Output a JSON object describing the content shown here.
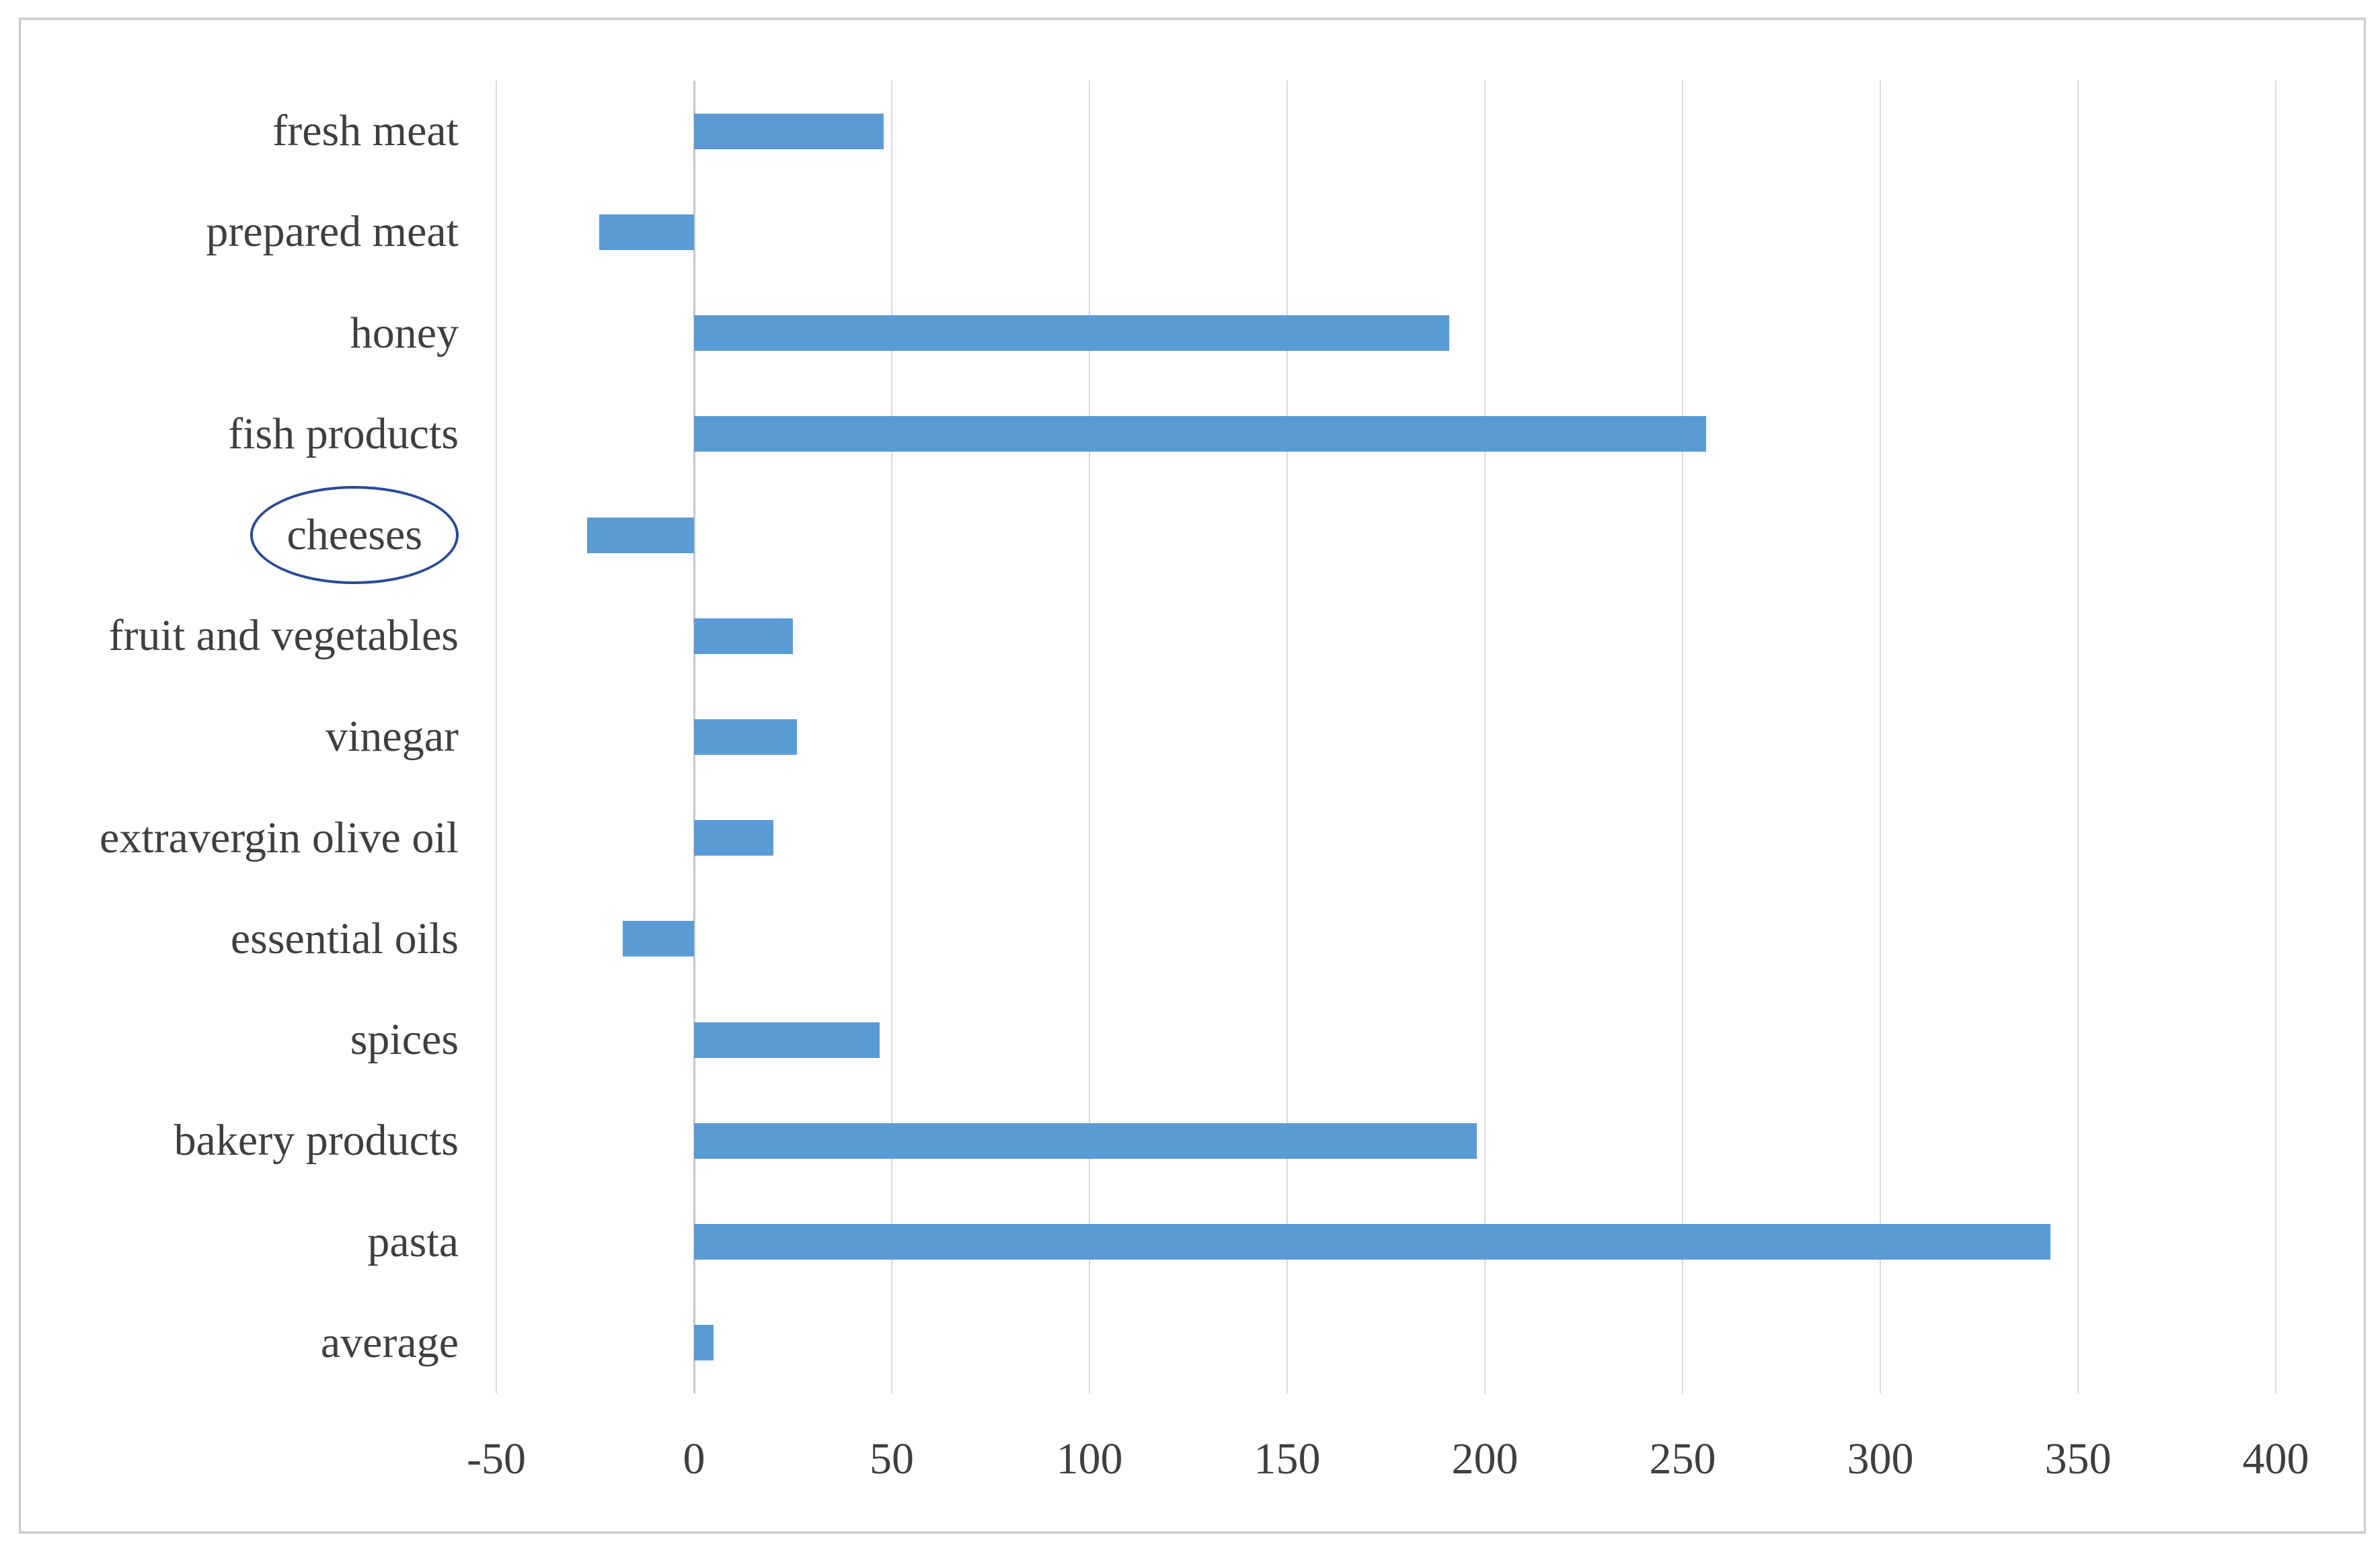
{
  "figure": {
    "background_color": "#ffffff",
    "frame_border_color": "#c9c9c9"
  },
  "chart_data": {
    "type": "bar",
    "orientation": "horizontal",
    "title": "",
    "xlabel": "",
    "ylabel": "",
    "categories": [
      "fresh meat",
      "prepared meat",
      "honey",
      "fish products",
      "cheeses",
      "fruit and vegetables",
      "vinegar",
      "extravergin olive oil",
      "essential oils",
      "spices",
      "bakery products",
      "pasta",
      "average"
    ],
    "values": [
      48,
      -24,
      191,
      256,
      -27,
      25,
      26,
      20,
      -18,
      47,
      198,
      343,
      5
    ],
    "xlim": [
      -50,
      400
    ],
    "x_ticks": [
      -50,
      0,
      50,
      100,
      150,
      200,
      250,
      300,
      350,
      400
    ],
    "x_tick_labels": [
      "-50",
      "0",
      "50",
      "100",
      "150",
      "200",
      "250",
      "300",
      "350",
      "400"
    ],
    "grid": "vertical-gridlines-on",
    "legend": "none",
    "bar_color": "#5B9BD5",
    "gridline_color": "#D9D9D9",
    "zero_line_color": "#C6C6C6",
    "label_color": "#3F3F3F",
    "annotation": {
      "type": "ellipse",
      "category": "cheeses",
      "color": "#2B4A96"
    }
  }
}
